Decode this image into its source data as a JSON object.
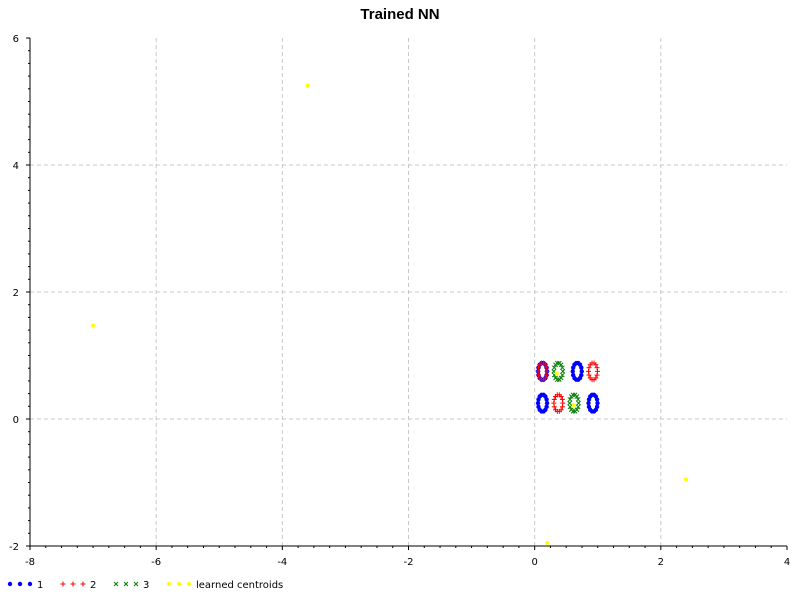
{
  "chart_data": {
    "type": "scatter",
    "title": "Trained NN",
    "xlabel": "",
    "ylabel": "",
    "xlim": [
      -8,
      4
    ],
    "ylim": [
      -2,
      6
    ],
    "xticks": [
      "-8",
      "-6",
      "-4",
      "-2",
      "0",
      "2",
      "4"
    ],
    "yticks": [
      "-2",
      "0",
      "2",
      "4",
      "6"
    ],
    "grid": true,
    "legend_position": "bottom-left",
    "series": [
      {
        "name": "1",
        "marker": "dot",
        "color": "#0000ff",
        "points": [
          [
            0.1,
            0.75
          ],
          [
            0.125,
            0.75
          ],
          [
            0.15,
            0.75
          ],
          [
            0.1,
            0.8
          ],
          [
            0.125,
            0.8
          ],
          [
            0.15,
            0.8
          ],
          [
            0.1,
            0.7
          ],
          [
            0.125,
            0.7
          ],
          [
            0.15,
            0.7
          ],
          [
            0.65,
            0.75
          ],
          [
            0.675,
            0.75
          ],
          [
            0.7,
            0.75
          ],
          [
            0.65,
            0.8
          ],
          [
            0.675,
            0.8
          ],
          [
            0.7,
            0.8
          ],
          [
            0.65,
            0.7
          ],
          [
            0.675,
            0.7
          ],
          [
            0.7,
            0.7
          ],
          [
            0.1,
            0.25
          ],
          [
            0.125,
            0.25
          ],
          [
            0.15,
            0.25
          ],
          [
            0.1,
            0.3
          ],
          [
            0.125,
            0.3
          ],
          [
            0.15,
            0.3
          ],
          [
            0.1,
            0.2
          ],
          [
            0.125,
            0.2
          ],
          [
            0.15,
            0.2
          ],
          [
            0.9,
            0.25
          ],
          [
            0.925,
            0.25
          ],
          [
            0.95,
            0.25
          ],
          [
            0.9,
            0.3
          ],
          [
            0.925,
            0.3
          ],
          [
            0.95,
            0.3
          ],
          [
            0.9,
            0.2
          ],
          [
            0.925,
            0.2
          ],
          [
            0.95,
            0.2
          ]
        ]
      },
      {
        "name": "2",
        "marker": "plus",
        "color": "#ff0000",
        "points": [
          [
            0.1,
            0.75
          ],
          [
            0.125,
            0.75
          ],
          [
            0.15,
            0.75
          ],
          [
            0.1,
            0.8
          ],
          [
            0.125,
            0.8
          ],
          [
            0.15,
            0.8
          ],
          [
            0.1,
            0.7
          ],
          [
            0.125,
            0.7
          ],
          [
            0.15,
            0.7
          ],
          [
            0.9,
            0.75
          ],
          [
            0.925,
            0.75
          ],
          [
            0.95,
            0.75
          ],
          [
            0.9,
            0.8
          ],
          [
            0.925,
            0.8
          ],
          [
            0.95,
            0.8
          ],
          [
            0.9,
            0.7
          ],
          [
            0.925,
            0.7
          ],
          [
            0.95,
            0.7
          ],
          [
            0.35,
            0.25
          ],
          [
            0.375,
            0.25
          ],
          [
            0.4,
            0.25
          ],
          [
            0.35,
            0.3
          ],
          [
            0.375,
            0.3
          ],
          [
            0.4,
            0.3
          ],
          [
            0.35,
            0.2
          ],
          [
            0.375,
            0.2
          ],
          [
            0.4,
            0.2
          ]
        ]
      },
      {
        "name": "3",
        "marker": "cross",
        "color": "#008000",
        "points": [
          [
            0.35,
            0.75
          ],
          [
            0.375,
            0.75
          ],
          [
            0.4,
            0.75
          ],
          [
            0.35,
            0.8
          ],
          [
            0.375,
            0.8
          ],
          [
            0.4,
            0.8
          ],
          [
            0.35,
            0.7
          ],
          [
            0.375,
            0.7
          ],
          [
            0.4,
            0.7
          ],
          [
            0.6,
            0.25
          ],
          [
            0.625,
            0.25
          ],
          [
            0.65,
            0.25
          ],
          [
            0.6,
            0.3
          ],
          [
            0.625,
            0.3
          ],
          [
            0.65,
            0.3
          ],
          [
            0.6,
            0.2
          ],
          [
            0.625,
            0.2
          ],
          [
            0.65,
            0.2
          ]
        ]
      },
      {
        "name": "learned centroids",
        "marker": "star",
        "color": "#ffff00",
        "points": [
          [
            -3.6,
            5.25
          ],
          [
            -7.0,
            1.47
          ],
          [
            2.4,
            -0.95
          ],
          [
            0.2,
            -1.95
          ],
          [
            0.35,
            0.72
          ],
          [
            0.62,
            0.22
          ]
        ]
      }
    ]
  }
}
